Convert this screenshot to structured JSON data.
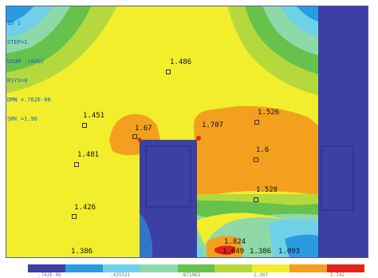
{
  "overlay": {
    "lines": [
      "ID 1",
      "STEP=1",
      "USUM  (AVG)",
      "RSYS=0",
      "DMN =.762E-06",
      "SMX =1.96"
    ]
  },
  "probes": [
    {
      "value": "1.486"
    },
    {
      "value": "1.451"
    },
    {
      "value": "1.67"
    },
    {
      "value": "1.707"
    },
    {
      "value": "1.526"
    },
    {
      "value": "1.481"
    },
    {
      "value": "1.6"
    },
    {
      "value": "1.528"
    },
    {
      "value": "1.426"
    },
    {
      "value": "1.824"
    },
    {
      "value": "1.386"
    },
    {
      "value": "1.649"
    },
    {
      "value": "1.386"
    },
    {
      "value": "1.093"
    }
  ],
  "legend": {
    "colors": [
      "#3c3fa3",
      "#2b9be0",
      "#6fd1e8",
      "#8fd9a8",
      "#66c24a",
      "#b3d93b",
      "#f0ee2e",
      "#f3a01f",
      "#e2231a"
    ],
    "ticks": [
      ".762E-06",
      ".435531",
      ".871061",
      "1.307",
      "1.742"
    ]
  }
}
